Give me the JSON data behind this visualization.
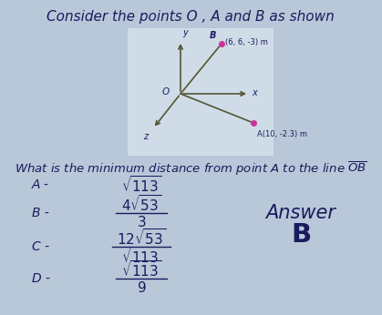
{
  "title": "Consider the points O , A and B as shown",
  "question": "What is the minimum distance from point A to the line $\\overline{OB}$",
  "answer_label": "Answer",
  "answer_value": "B",
  "diagram": {
    "bg_color": "#cfdce8",
    "line_color_OB": "#555533",
    "line_color_OA": "#555533",
    "axis_color": "#555533",
    "point_color": "#cc3399",
    "label_y": "y",
    "label_x": "x",
    "label_z": "z",
    "O_label": "O",
    "A_label": "A(10, -2.3) m",
    "B_label": "(6, 6, -3) m",
    "B_point_label": "B"
  },
  "bg_color": "#b8c8d8",
  "text_color": "#1a1a5e",
  "font_size_title": 11,
  "font_size_question": 9.5,
  "font_size_options": 11,
  "font_size_label": 10,
  "font_size_answer": 15
}
